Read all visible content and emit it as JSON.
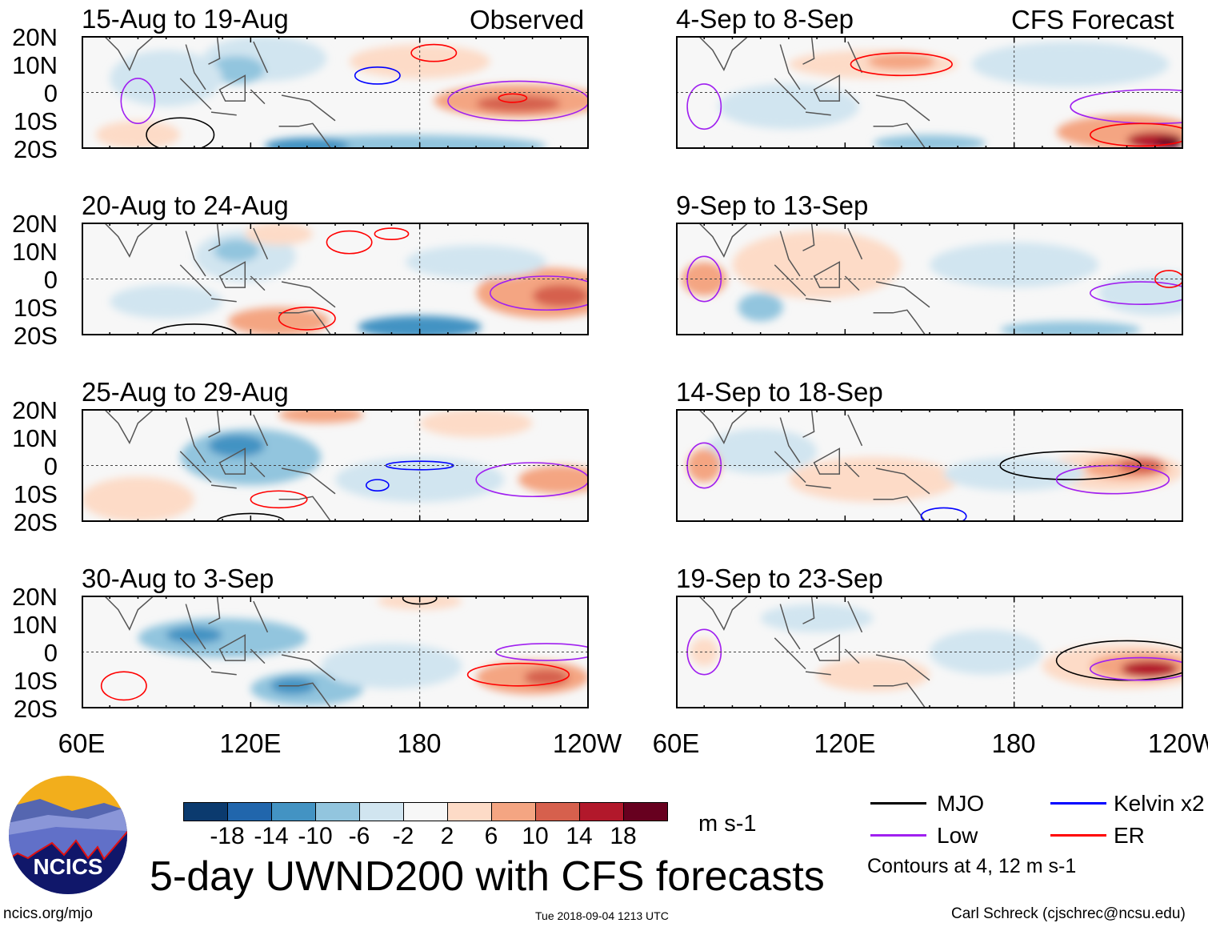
{
  "columns": {
    "observed_label": "Observed",
    "forecast_label": "CFS Forecast"
  },
  "panels": [
    {
      "title": "15-Aug to 19-Aug",
      "group": "observed"
    },
    {
      "title": "20-Aug to 24-Aug",
      "group": "observed"
    },
    {
      "title": "25-Aug to 29-Aug",
      "group": "observed"
    },
    {
      "title": "30-Aug to 3-Sep",
      "group": "observed"
    },
    {
      "title": "4-Sep to 8-Sep",
      "group": "forecast"
    },
    {
      "title": "9-Sep to 13-Sep",
      "group": "forecast"
    },
    {
      "title": "14-Sep to 18-Sep",
      "group": "forecast"
    },
    {
      "title": "19-Sep to 23-Sep",
      "group": "forecast"
    }
  ],
  "chart_data": {
    "type": "heatmap",
    "title": "5-day UWND200 with CFS forecasts",
    "variable": "200 hPa zonal wind anomaly",
    "xlim": [
      "60E",
      "120W"
    ],
    "ylim": [
      "20S",
      "20N"
    ],
    "x_ticks": [
      "60E",
      "120E",
      "180",
      "120W"
    ],
    "y_ticks": [
      "20N",
      "10N",
      "0",
      "10S",
      "20S"
    ],
    "colorbar": {
      "levels": [
        "-18",
        "-14",
        "-10",
        "-6",
        "-2",
        "2",
        "6",
        "10",
        "14",
        "18"
      ],
      "colors": [
        "#0b3a6e",
        "#2166ac",
        "#4393c3",
        "#92c5de",
        "#d1e5f0",
        "#f7f7f7",
        "#fddbc7",
        "#f4a582",
        "#d6604d",
        "#b2182b",
        "#67001f"
      ],
      "units": "m s-1"
    },
    "legend": [
      {
        "label": "MJO",
        "color": "#000000"
      },
      {
        "label": "Kelvin x2",
        "color": "#0000ff"
      },
      {
        "label": "Low",
        "color": "#a020f0"
      },
      {
        "label": "ER",
        "color": "#ff0000"
      }
    ],
    "contour_note": "Contours at 4, 12 m s-1"
  },
  "footer": {
    "url": "ncics.org/mjo",
    "timestamp": "Tue 2018-09-04 1213 UTC",
    "credit": "Carl Schreck (cjschrec@ncsu.edu)",
    "logo_text": "NCICS"
  }
}
